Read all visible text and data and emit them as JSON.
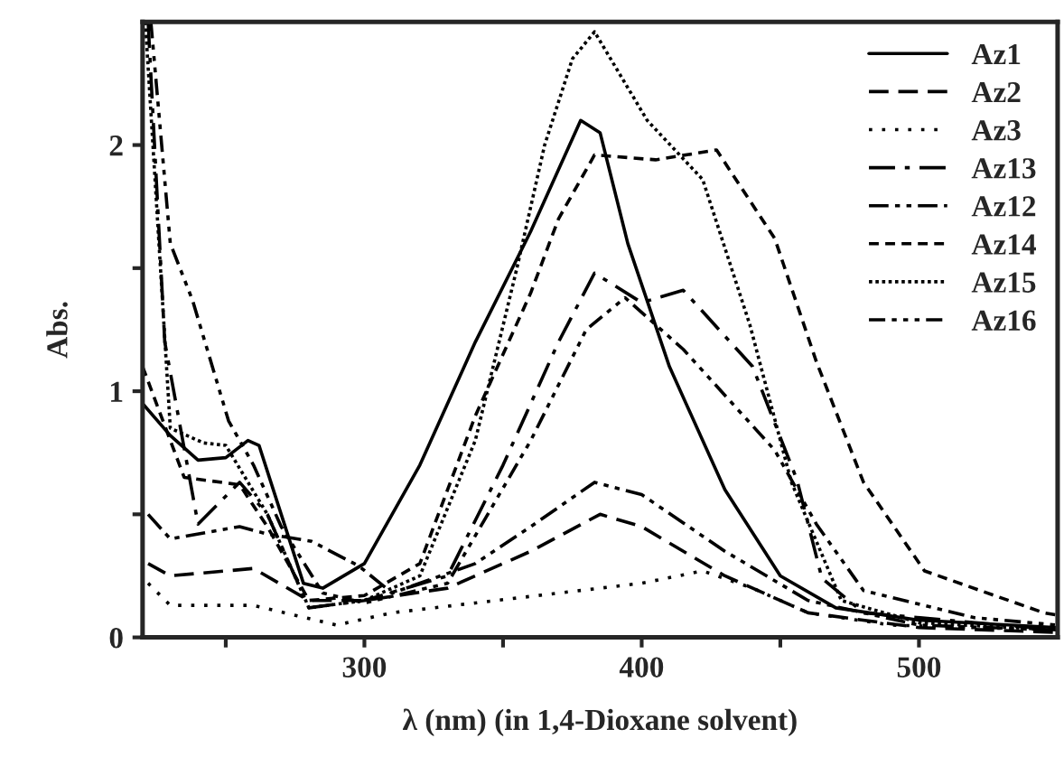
{
  "chart_data": {
    "type": "line",
    "xlabel": "λ (nm) (in 1,4-Dioxane solvent)",
    "ylabel": "Abs.",
    "xlim": [
      220,
      550
    ],
    "ylim": [
      0,
      2.5
    ],
    "xticks": [
      {
        "value": 250,
        "label": null
      },
      300,
      {
        "value": 350,
        "label": null
      },
      400,
      {
        "value": 450,
        "label": null
      },
      500
    ],
    "yticks": [
      0,
      {
        "value": 0.5,
        "label": null
      },
      1,
      {
        "value": 1.5,
        "label": null
      },
      2
    ],
    "grid": false,
    "legend": "top right",
    "series": [
      {
        "name": "Az1",
        "color": "#000000",
        "line_style": "solid",
        "x": [
          220,
          230,
          240,
          250,
          258,
          262,
          270,
          278,
          285,
          300,
          320,
          340,
          360,
          370,
          378,
          385,
          395,
          410,
          430,
          450,
          470,
          500,
          550
        ],
        "values": [
          0.95,
          0.82,
          0.72,
          0.73,
          0.8,
          0.78,
          0.5,
          0.22,
          0.2,
          0.3,
          0.7,
          1.2,
          1.65,
          1.9,
          2.1,
          2.05,
          1.6,
          1.1,
          0.6,
          0.25,
          0.12,
          0.07,
          0.04
        ]
      },
      {
        "name": "Az2",
        "color": "#000000",
        "line_style": "dashed",
        "x": [
          222,
          230,
          260,
          280,
          300,
          330,
          360,
          385,
          400,
          430,
          460,
          500,
          550
        ],
        "values": [
          0.3,
          0.25,
          0.28,
          0.15,
          0.15,
          0.2,
          0.35,
          0.5,
          0.45,
          0.25,
          0.1,
          0.04,
          0.02
        ]
      },
      {
        "name": "Az3",
        "color": "#000000",
        "line_style": "dotted",
        "x": [
          222,
          230,
          260,
          290,
          310,
          340,
          370,
          400,
          422,
          440,
          460,
          490,
          550
        ],
        "values": [
          0.22,
          0.13,
          0.13,
          0.05,
          0.1,
          0.14,
          0.18,
          0.22,
          0.27,
          0.2,
          0.1,
          0.05,
          0.03
        ]
      },
      {
        "name": "Az13",
        "color": "#000000",
        "line_style": "longdashdot",
        "x": [
          222,
          228,
          240,
          255,
          265,
          280,
          300,
          330,
          350,
          370,
          383,
          400,
          415,
          440,
          456,
          465,
          480,
          550
        ],
        "values": [
          2.5,
          1.2,
          0.46,
          0.63,
          0.5,
          0.12,
          0.15,
          0.25,
          0.7,
          1.2,
          1.48,
          1.36,
          1.41,
          1.1,
          0.64,
          0.24,
          0.1,
          0.03
        ]
      },
      {
        "name": "Az12",
        "color": "#000000",
        "line_style": "dashdotdot",
        "x": [
          222,
          230,
          255,
          265,
          281,
          298,
          310,
          340,
          360,
          383,
          400,
          430,
          460,
          500,
          550
        ],
        "values": [
          0.5,
          0.4,
          0.45,
          0.42,
          0.39,
          0.29,
          0.18,
          0.3,
          0.45,
          0.63,
          0.58,
          0.35,
          0.15,
          0.05,
          0.03
        ]
      },
      {
        "name": "Az14",
        "color": "#000000",
        "line_style": "shortdashed",
        "x": [
          220,
          235,
          255,
          265,
          280,
          300,
          320,
          340,
          360,
          370,
          383,
          405,
          427,
          448,
          463,
          480,
          502,
          545,
          550
        ],
        "values": [
          1.1,
          0.65,
          0.62,
          0.45,
          0.15,
          0.17,
          0.3,
          0.9,
          1.4,
          1.7,
          1.96,
          1.94,
          1.98,
          1.62,
          1.12,
          0.63,
          0.27,
          0.1,
          0.09
        ]
      },
      {
        "name": "Az15",
        "color": "#000000",
        "line_style": "finedotted",
        "x": [
          221,
          230,
          242,
          250,
          265,
          280,
          300,
          320,
          340,
          355,
          365,
          375,
          383,
          402,
          422,
          439,
          454,
          472,
          500,
          550
        ],
        "values": [
          2.5,
          0.85,
          0.79,
          0.78,
          0.5,
          0.12,
          0.15,
          0.25,
          0.8,
          1.5,
          2.0,
          2.35,
          2.46,
          2.1,
          1.86,
          1.27,
          0.63,
          0.15,
          0.06,
          0.03
        ]
      },
      {
        "name": "Az16",
        "color": "#000000",
        "line_style": "dashdotdotdot",
        "x": [
          223,
          230,
          238,
          251,
          260,
          270,
          285,
          300,
          330,
          360,
          380,
          394,
          415,
          448,
          463,
          480,
          520,
          550
        ],
        "values": [
          2.5,
          1.6,
          1.37,
          0.88,
          0.7,
          0.45,
          0.18,
          0.14,
          0.22,
          0.8,
          1.25,
          1.38,
          1.17,
          0.76,
          0.46,
          0.19,
          0.08,
          0.05
        ]
      }
    ]
  }
}
